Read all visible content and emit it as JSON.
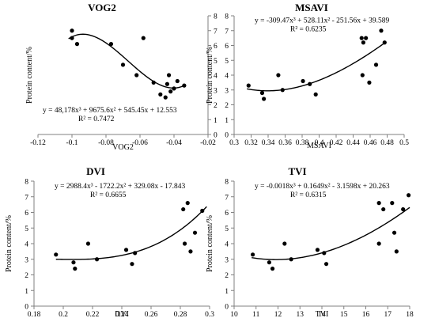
{
  "chart_data": [
    {
      "type": "scatter",
      "title": "VOG2",
      "xlabel": "VOG2",
      "ylabel": "Protein content/%",
      "xlim": [
        -0.12,
        -0.02
      ],
      "ylim": [
        0,
        8
      ],
      "xticks": [
        -0.12,
        -0.1,
        -0.08,
        -0.06,
        -0.04,
        -0.02
      ],
      "yticks": [
        0,
        1,
        2,
        3,
        4,
        5,
        6,
        7,
        8
      ],
      "y_axis_side": "right",
      "x_tick_labels": [
        "-0.12",
        "-0.1",
        "-0.08",
        "-0.06",
        "-0.04",
        "-0.02"
      ],
      "y_tick_labels": [
        "0",
        "1",
        "2",
        "3",
        "4",
        "5",
        "6",
        "7",
        "8"
      ],
      "points": [
        [
          -0.1,
          7.0
        ],
        [
          -0.1,
          6.5
        ],
        [
          -0.097,
          6.1
        ],
        [
          -0.077,
          6.1
        ],
        [
          -0.07,
          4.7
        ],
        [
          -0.062,
          4.0
        ],
        [
          -0.058,
          6.5
        ],
        [
          -0.052,
          3.5
        ],
        [
          -0.048,
          2.7
        ],
        [
          -0.045,
          2.5
        ],
        [
          -0.044,
          3.4
        ],
        [
          -0.043,
          4.0
        ],
        [
          -0.042,
          2.9
        ],
        [
          -0.04,
          3.1
        ],
        [
          -0.038,
          3.6
        ],
        [
          -0.034,
          3.3
        ]
      ],
      "trendline": {
        "type": "polynomial",
        "coefficients": [
          48178,
          9675.6,
          545.45,
          12.553
        ],
        "x_range": [
          -0.102,
          -0.034
        ]
      },
      "equation": "y = 48,178x³ + 9675.6x² + 545.45x + 12.553",
      "r2": "R² = 0.7472",
      "equation_position": "bottom-left"
    },
    {
      "type": "scatter",
      "title": "MSAVI",
      "xlabel": "MSAVI",
      "ylabel": "Protein content/%",
      "xlim": [
        0.3,
        0.5
      ],
      "ylim": [
        0,
        8
      ],
      "xticks": [
        0.3,
        0.32,
        0.34,
        0.36,
        0.38,
        0.4,
        0.42,
        0.44,
        0.46,
        0.48,
        0.5
      ],
      "yticks": [
        0,
        1,
        2,
        3,
        4,
        5,
        6,
        7,
        8
      ],
      "y_axis_side": "left",
      "x_tick_labels": [
        "0.3",
        "0.32",
        "0.34",
        "0.36",
        "0.38",
        "0.4",
        "0.42",
        "0.44",
        "0.46",
        "0.48",
        "0.5"
      ],
      "y_tick_labels": [
        "0",
        "1",
        "2",
        "3",
        "4",
        "5",
        "6",
        "7",
        "8"
      ],
      "points": [
        [
          0.317,
          3.3
        ],
        [
          0.333,
          2.8
        ],
        [
          0.335,
          2.4
        ],
        [
          0.352,
          4.0
        ],
        [
          0.357,
          3.0
        ],
        [
          0.381,
          3.6
        ],
        [
          0.389,
          3.4
        ],
        [
          0.396,
          2.7
        ],
        [
          0.45,
          6.5
        ],
        [
          0.451,
          4.0
        ],
        [
          0.452,
          6.2
        ],
        [
          0.455,
          6.5
        ],
        [
          0.459,
          3.5
        ],
        [
          0.467,
          4.7
        ],
        [
          0.473,
          7.0
        ],
        [
          0.477,
          6.2
        ]
      ],
      "trendline": {
        "type": "polynomial",
        "coefficients": [
          -309.47,
          528.11,
          -251.56,
          39.589
        ],
        "x_range": [
          0.315,
          0.479
        ]
      },
      "equation": "y = -309.47x³ + 528.11x² - 251.56x + 39.589",
      "r2": "R² = 0.6235",
      "equation_position": "top-left"
    },
    {
      "type": "scatter",
      "title": "DVI",
      "xlabel": "DVI",
      "ylabel": "Protein content/%",
      "xlim": [
        0.18,
        0.3
      ],
      "ylim": [
        0,
        8
      ],
      "xticks": [
        0.18,
        0.2,
        0.22,
        0.24,
        0.26,
        0.28,
        0.3
      ],
      "yticks": [
        0,
        1,
        2,
        3,
        4,
        5,
        6,
        7,
        8
      ],
      "y_axis_side": "left",
      "x_tick_labels": [
        "0.18",
        "0.2",
        "0.22",
        "0.24",
        "0.26",
        "0.28",
        "0.3"
      ],
      "y_tick_labels": [
        "0",
        "1",
        "2",
        "3",
        "4",
        "5",
        "6",
        "7",
        "8"
      ],
      "points": [
        [
          0.195,
          3.3
        ],
        [
          0.207,
          2.8
        ],
        [
          0.208,
          2.4
        ],
        [
          0.217,
          4.0
        ],
        [
          0.223,
          3.0
        ],
        [
          0.243,
          3.6
        ],
        [
          0.247,
          2.7
        ],
        [
          0.249,
          3.4
        ],
        [
          0.282,
          6.2
        ],
        [
          0.283,
          4.0
        ],
        [
          0.285,
          6.6
        ],
        [
          0.287,
          3.5
        ],
        [
          0.29,
          4.7
        ],
        [
          0.295,
          6.1
        ]
      ],
      "trendline": {
        "type": "polynomial",
        "coefficients": [
          2988.4,
          -1722.2,
          329.08,
          -17.843
        ],
        "x_range": [
          0.195,
          0.298
        ]
      },
      "equation": "y = 2988.4x³ - 1722.2x² + 329.08x - 17.843",
      "r2": "R² = 0.6655",
      "equation_position": "top-left"
    },
    {
      "type": "scatter",
      "title": "TVI",
      "xlabel": "TVI",
      "ylabel": "Protein content/%",
      "xlim": [
        10,
        18
      ],
      "ylim": [
        0,
        8
      ],
      "xticks": [
        10,
        11,
        12,
        13,
        14,
        15,
        16,
        17,
        18
      ],
      "yticks": [
        0,
        1,
        2,
        3,
        4,
        5,
        6,
        7,
        8
      ],
      "y_axis_side": "left",
      "x_tick_labels": [
        "10",
        "11",
        "12",
        "13",
        "14",
        "15",
        "16",
        "17",
        "18"
      ],
      "y_tick_labels": [
        "0",
        "1",
        "2",
        "3",
        "4",
        "5",
        "6",
        "7",
        "8"
      ],
      "points": [
        [
          10.85,
          3.3
        ],
        [
          11.6,
          2.8
        ],
        [
          11.75,
          2.4
        ],
        [
          12.3,
          4.0
        ],
        [
          12.6,
          3.0
        ],
        [
          13.8,
          3.6
        ],
        [
          14.1,
          3.4
        ],
        [
          14.2,
          2.7
        ],
        [
          16.6,
          6.6
        ],
        [
          16.6,
          4.0
        ],
        [
          16.8,
          6.2
        ],
        [
          17.2,
          6.6
        ],
        [
          17.3,
          4.7
        ],
        [
          17.4,
          3.5
        ],
        [
          17.7,
          6.2
        ],
        [
          17.95,
          7.1
        ]
      ],
      "trendline": {
        "type": "polynomial",
        "coefficients": [
          -0.0018,
          0.1649,
          -3.1598,
          20.263
        ],
        "x_range": [
          10.8,
          18.0
        ]
      },
      "equation": "y = -0.0018x³ + 0.1649x² - 3.1598x + 20.263",
      "r2": "R² = 0.6315",
      "equation_position": "top-left"
    }
  ],
  "colors": {
    "points": "#000000",
    "trendline": "#000000",
    "axes": "#808080",
    "text": "#000000"
  }
}
